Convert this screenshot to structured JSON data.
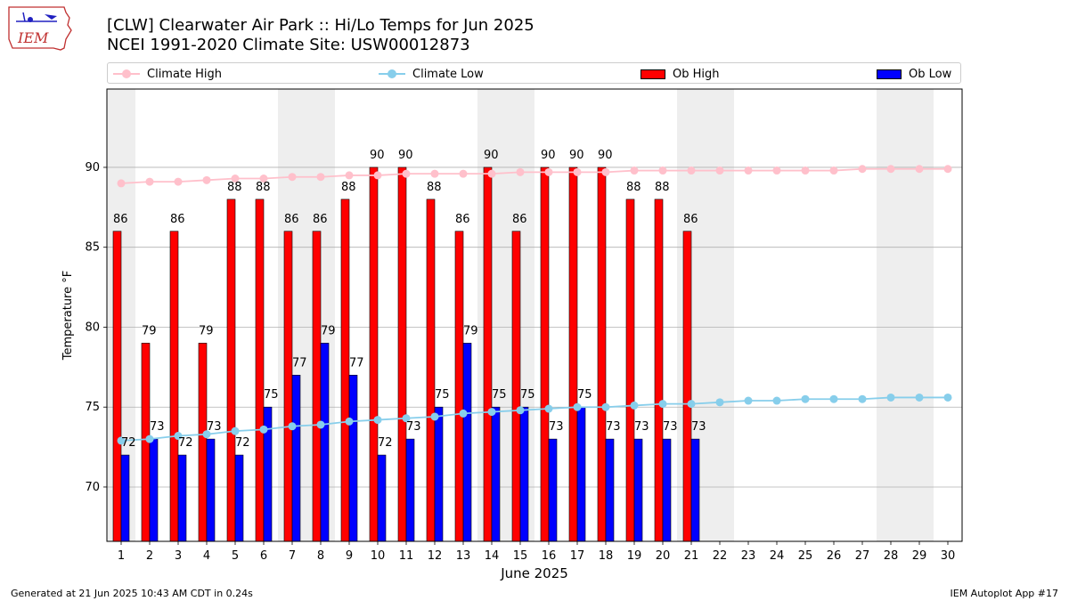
{
  "header": {
    "title_line1": "[CLW] Clearwater Air Park :: Hi/Lo Temps for Jun 2025",
    "title_line2": "NCEI 1991-2020 Climate Site: USW00012873",
    "logo_text": "IEM"
  },
  "legend": {
    "climate_high": "Climate High",
    "climate_low": "Climate Low",
    "ob_high": "Ob High",
    "ob_low": "Ob Low"
  },
  "footer": {
    "generated": "Generated at 21 Jun 2025 10:43 AM CDT in 0.24s",
    "app": "IEM Autoplot App #17"
  },
  "colors": {
    "ob_high": "#ff0000",
    "ob_low": "#0000ff",
    "climate_high": "#ffc0cb",
    "climate_low": "#87ceeb",
    "weekend_shade": "#eeeeee",
    "grid": "#b0b0b0"
  },
  "chart_data": {
    "type": "bar",
    "xlabel": "June 2025",
    "ylabel": "Temperature °F",
    "ylim": [
      66.6,
      94.9
    ],
    "yticks": [
      70,
      75,
      80,
      85,
      90
    ],
    "grid": "horizontal",
    "legend_position": "top",
    "categories": [
      1,
      2,
      3,
      4,
      5,
      6,
      7,
      8,
      9,
      10,
      11,
      12,
      13,
      14,
      15,
      16,
      17,
      18,
      19,
      20,
      21,
      22,
      23,
      24,
      25,
      26,
      27,
      28,
      29,
      30
    ],
    "shaded_days": [
      1,
      7,
      8,
      14,
      15,
      21,
      22,
      28,
      29
    ],
    "series": [
      {
        "name": "Ob High",
        "type": "bar",
        "values": [
          86,
          79,
          86,
          79,
          88,
          88,
          86,
          86,
          88,
          90,
          90,
          88,
          86,
          90,
          86,
          90,
          90,
          90,
          88,
          88,
          86,
          null,
          null,
          null,
          null,
          null,
          null,
          null,
          null,
          null
        ]
      },
      {
        "name": "Ob Low",
        "type": "bar",
        "values": [
          72,
          73,
          72,
          73,
          72,
          75,
          77,
          79,
          77,
          72,
          73,
          75,
          79,
          75,
          75,
          73,
          75,
          73,
          73,
          73,
          73,
          null,
          null,
          null,
          null,
          null,
          null,
          null,
          null,
          null
        ]
      },
      {
        "name": "Climate High",
        "type": "line",
        "values": [
          89.0,
          89.1,
          89.1,
          89.2,
          89.3,
          89.3,
          89.4,
          89.4,
          89.5,
          89.5,
          89.6,
          89.6,
          89.6,
          89.6,
          89.7,
          89.7,
          89.7,
          89.7,
          89.8,
          89.8,
          89.8,
          89.8,
          89.8,
          89.8,
          89.8,
          89.8,
          89.9,
          89.9,
          89.9,
          89.9
        ]
      },
      {
        "name": "Climate Low",
        "type": "line",
        "values": [
          72.9,
          73.0,
          73.2,
          73.3,
          73.5,
          73.6,
          73.8,
          73.9,
          74.1,
          74.2,
          74.3,
          74.4,
          74.6,
          74.7,
          74.8,
          74.9,
          75.0,
          75.0,
          75.1,
          75.2,
          75.2,
          75.3,
          75.4,
          75.4,
          75.5,
          75.5,
          75.5,
          75.6,
          75.6,
          75.6
        ]
      }
    ]
  }
}
